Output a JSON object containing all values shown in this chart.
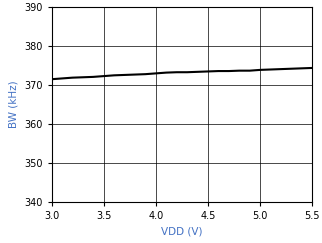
{
  "x": [
    3.0,
    3.1,
    3.2,
    3.3,
    3.4,
    3.5,
    3.6,
    3.7,
    3.8,
    3.9,
    4.0,
    4.1,
    4.2,
    4.3,
    4.4,
    4.5,
    4.6,
    4.7,
    4.8,
    4.9,
    5.0,
    5.1,
    5.2,
    5.3,
    5.4,
    5.5
  ],
  "y": [
    371.5,
    371.7,
    371.9,
    372.0,
    372.1,
    372.3,
    372.5,
    372.6,
    372.7,
    372.8,
    373.0,
    373.2,
    373.3,
    373.3,
    373.4,
    373.5,
    373.6,
    373.6,
    373.7,
    373.7,
    373.9,
    374.0,
    374.1,
    374.2,
    374.3,
    374.4
  ],
  "xlabel": "VDD (V)",
  "ylabel": "BW (kHz)",
  "xlim": [
    3,
    5.5
  ],
  "ylim": [
    340,
    390
  ],
  "xticks": [
    3,
    3.5,
    4,
    4.5,
    5,
    5.5
  ],
  "yticks": [
    340,
    350,
    360,
    370,
    380,
    390
  ],
  "line_color": "#000000",
  "line_width": 1.5,
  "grid_color": "#000000",
  "background_color": "#ffffff",
  "xlabel_color": "#4472c4",
  "ylabel_color": "#4472c4",
  "tick_label_color": "#000000",
  "xlabel_fontsize": 7.5,
  "ylabel_fontsize": 7.5,
  "tick_fontsize": 7
}
